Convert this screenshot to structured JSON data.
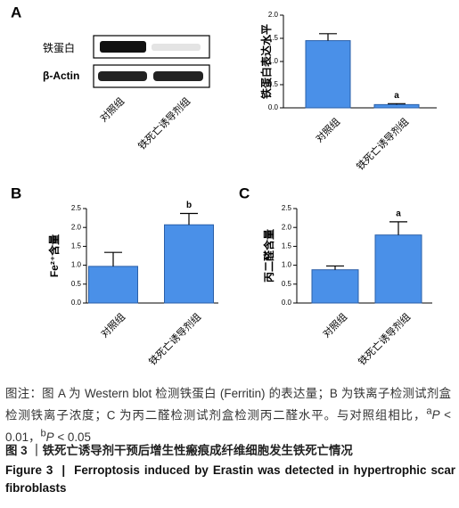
{
  "chart_data": [
    {
      "type": "bar",
      "panel": "A",
      "ylabel": "铁蛋白表达水平",
      "categories": [
        "对照组",
        "铁死亡诱导剂组"
      ],
      "values": [
        1.45,
        0.07
      ],
      "errors": [
        0.15,
        0.02
      ],
      "annotations": [
        {
          "index": 1,
          "text": "a"
        }
      ],
      "color": "#4a90e8",
      "ylim": [
        0,
        2
      ],
      "yticks": [
        {
          "value": 0,
          "label": "0.0"
        },
        {
          "value": 0.5,
          "label": "0.5"
        },
        {
          "value": 1,
          "label": "1.0"
        },
        {
          "value": 1.5,
          "label": "1.5"
        },
        {
          "value": 2,
          "label": "2.0"
        }
      ]
    },
    {
      "type": "bar",
      "panel": "B",
      "ylabel": "Fe²⁺含量",
      "categories": [
        "对照组",
        "铁死亡诱导剂组"
      ],
      "values": [
        0.97,
        2.07
      ],
      "errors": [
        0.37,
        0.3
      ],
      "annotations": [
        {
          "index": 1,
          "text": "b"
        }
      ],
      "color": "#4a90e8",
      "ylim": [
        0,
        2.5
      ],
      "yticks": [
        {
          "value": 0,
          "label": "0.0"
        },
        {
          "value": 0.5,
          "label": "0.5"
        },
        {
          "value": 1,
          "label": "1.0"
        },
        {
          "value": 1.5,
          "label": "1.5"
        },
        {
          "value": 2,
          "label": "2.0"
        },
        {
          "value": 2.5,
          "label": "2.5"
        }
      ]
    },
    {
      "type": "bar",
      "panel": "C",
      "ylabel": "丙二醛含量",
      "categories": [
        "对照组",
        "铁死亡诱导剂组"
      ],
      "values": [
        0.88,
        1.8
      ],
      "errors": [
        0.1,
        0.35
      ],
      "annotations": [
        {
          "index": 1,
          "text": "a"
        }
      ],
      "color": "#4a90e8",
      "ylim": [
        0,
        2.5
      ],
      "yticks": [
        {
          "value": 0,
          "label": "0.0"
        },
        {
          "value": 0.5,
          "label": "0.5"
        },
        {
          "value": 1,
          "label": "1.0"
        },
        {
          "value": 1.5,
          "label": "1.5"
        },
        {
          "value": 2,
          "label": "2.0"
        },
        {
          "value": 2.5,
          "label": "2.5"
        }
      ]
    }
  ],
  "blot": {
    "rows": [
      "铁蛋白",
      "β-Actin"
    ],
    "lanes": [
      "对照组",
      "铁死亡诱导剂组"
    ]
  },
  "caption": {
    "note": "图注：图 A 为 Western blot 检测铁蛋白 (Ferritin) 的表达量；B 为铁离子检测试剂盒检测铁离子浓度；C 为丙二醛检测试剂盒检测丙二醛水平。与对照组相比，",
    "sig": [
      {
        "sup": "a",
        "p": "P",
        "text": " < 0.01，"
      },
      {
        "sup": "b",
        "p": "P",
        "text": " < 0.05"
      }
    ],
    "title_cn": "图 3 ｜铁死亡诱导剂干预后增生性瘢痕成纤维细胞发生铁死亡情况",
    "title_en": "Figure 3  |  Ferroptosis induced by Erastin was detected in hypertrophic scar fibroblasts"
  }
}
